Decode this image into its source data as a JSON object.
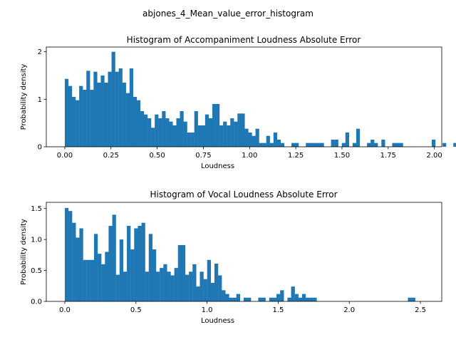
{
  "figure": {
    "suptitle": "abjones_4_Mean_value_error_histogram"
  },
  "chart_data": [
    {
      "type": "bar",
      "subtype": "histogram",
      "title": "Histogram of Accompaniment Loudness Absolute Error",
      "xlabel": "Loudness",
      "ylabel": "Probability density",
      "xlim": [
        -0.1,
        2.04
      ],
      "ylim": [
        0,
        2.1
      ],
      "xticks": [
        0.0,
        0.25,
        0.5,
        0.75,
        1.0,
        1.25,
        1.5,
        1.75,
        2.0
      ],
      "xtick_labels": [
        "0.00",
        "0.25",
        "0.50",
        "0.75",
        "1.00",
        "1.25",
        "1.50",
        "1.75",
        "2.00"
      ],
      "yticks": [
        0,
        1,
        2
      ],
      "ytick_labels": [
        "0",
        "1",
        "2"
      ],
      "bin_start": 0.0,
      "bin_width": 0.01947,
      "color": "#1f77b4",
      "values": [
        1.43,
        1.28,
        1.05,
        0.98,
        1.28,
        1.2,
        1.6,
        1.2,
        1.58,
        1.35,
        1.5,
        1.35,
        1.58,
        2.0,
        1.58,
        1.65,
        1.35,
        1.13,
        1.65,
        1.05,
        0.98,
        0.75,
        0.68,
        0.6,
        0.4,
        0.68,
        0.6,
        0.75,
        0.6,
        0.53,
        0.45,
        0.6,
        0.75,
        0.53,
        0.3,
        0.3,
        0.75,
        0.45,
        0.45,
        0.68,
        0.6,
        0.9,
        0.9,
        0.45,
        0.53,
        0.45,
        0.6,
        0.53,
        0.7,
        0.7,
        0.38,
        0.3,
        0.23,
        0.38,
        0.08,
        0.08,
        0.23,
        0.08,
        0.3,
        0.15,
        0.08,
        0.0,
        0.0,
        0.08,
        0.08,
        0.0,
        0.0,
        0.08,
        0.08,
        0.08,
        0.08,
        0.08,
        0.0,
        0.0,
        0.15,
        0.15,
        0.0,
        0.08,
        0.3,
        0.0,
        0.08,
        0.38,
        0.0,
        0.0,
        0.08,
        0.15,
        0.08,
        0.0,
        0.15,
        0.0,
        0.0,
        0.08,
        0.08,
        0.08,
        0.0,
        0.0,
        0.0,
        0.0,
        0.0,
        0.0,
        0.0,
        0.0,
        0.15,
        0.0,
        0.0,
        0.08,
        0.0,
        0.0,
        0.08,
        0.0,
        0.0,
        0.0,
        0.0,
        0.0,
        0.08,
        0.08,
        0.08,
        0.0,
        0.0,
        0.0,
        0.0,
        0.0,
        0.0,
        0.0,
        0.0,
        0.0,
        0.0,
        0.0,
        0.0,
        0.0,
        0.0,
        0.0,
        0.0,
        0.0,
        0.0,
        0.0,
        0.0,
        0.0,
        0.0,
        0.0,
        0.0,
        0.0,
        0.0,
        0.0,
        0.0,
        0.0,
        0.0,
        0.15
      ]
    },
    {
      "type": "bar",
      "subtype": "histogram",
      "title": "Histogram of Vocal Loudness Absolute Error",
      "xlabel": "Loudness",
      "ylabel": "Probability density",
      "xlim": [
        -0.13,
        2.65
      ],
      "ylim": [
        0,
        1.6
      ],
      "xticks": [
        0.0,
        0.5,
        1.0,
        1.5,
        2.0,
        2.5
      ],
      "xtick_labels": [
        "0.0",
        "0.5",
        "1.0",
        "1.5",
        "2.0",
        "2.5"
      ],
      "yticks": [
        0.0,
        0.5,
        1.0,
        1.5
      ],
      "ytick_labels": [
        "0.0",
        "0.5",
        "1.0",
        "1.5"
      ],
      "bin_start": 0.0,
      "bin_width": 0.02566,
      "color": "#1f77b4",
      "values": [
        1.51,
        1.46,
        1.27,
        1.03,
        1.18,
        0.67,
        0.67,
        0.67,
        1.09,
        0.77,
        0.6,
        0.8,
        1.22,
        1.4,
        0.43,
        1.0,
        0.48,
        1.22,
        0.84,
        1.18,
        1.22,
        1.27,
        0.48,
        1.09,
        0.84,
        0.48,
        0.54,
        0.6,
        0.48,
        0.42,
        0.54,
        0.91,
        0.91,
        0.43,
        0.48,
        0.6,
        0.24,
        0.48,
        0.36,
        0.67,
        0.3,
        0.61,
        0.42,
        0.18,
        0.12,
        0.06,
        0.06,
        0.12,
        0.0,
        0.06,
        0.06,
        0.0,
        0.0,
        0.06,
        0.06,
        0.0,
        0.06,
        0.06,
        0.12,
        0.18,
        0.0,
        0.06,
        0.24,
        0.12,
        0.06,
        0.12,
        0.06,
        0.06,
        0.06,
        0.0,
        0.0,
        0.0,
        0.0,
        0.0,
        0.0,
        0.0,
        0.0,
        0.0,
        0.0,
        0.0,
        0.0,
        0.0,
        0.0,
        0.0,
        0.0,
        0.0,
        0.0,
        0.0,
        0.0,
        0.0,
        0.0,
        0.0,
        0.0,
        0.0,
        0.06,
        0.06,
        0.0,
        0.0,
        0.0,
        0.0,
        0.0,
        0.0,
        0.0,
        0.0,
        0.0,
        0.0,
        0.0,
        0.0,
        0.0,
        0.0,
        0.0,
        0.0,
        0.06,
        0.0,
        0.0,
        0.0,
        0.0,
        0.0,
        0.0,
        0.06
      ]
    }
  ]
}
